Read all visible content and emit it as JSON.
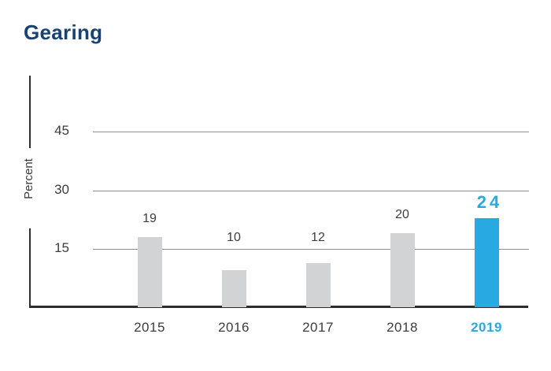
{
  "colors": {
    "title_navy": "#164373",
    "accent_blue": "#29A9E1",
    "bar_gray": "#D1D3D4",
    "axis_dark": "#2D2D2D",
    "gridline_gray": "#8E8F90",
    "text_dark": "#3C3C3B"
  },
  "chart_data": {
    "type": "bar",
    "title": "Gearing",
    "ylabel": "Percent",
    "xlabel": "",
    "categories": [
      "2015",
      "2016",
      "2017",
      "2018",
      "2019"
    ],
    "values": [
      19,
      10,
      12,
      20,
      24
    ],
    "yticks": [
      15,
      30,
      45
    ],
    "ylim": [
      0,
      55
    ],
    "grid": "horizontal",
    "legend": "none",
    "bar_color_default": "#D1D3D4",
    "highlight": {
      "category": "2019",
      "value": 24,
      "color": "#29A9E1"
    }
  }
}
